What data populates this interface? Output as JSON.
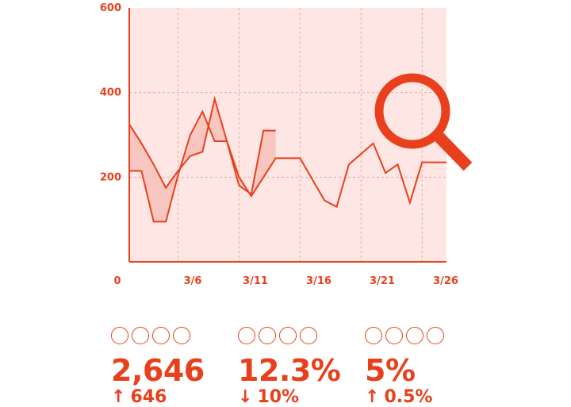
{
  "colors": {
    "accent": "#e8401c",
    "plot_bg": "#fde6e4",
    "band": "#f7c6c0",
    "grid": "#f0a898"
  },
  "chart_data": {
    "type": "line",
    "y_ticks": [
      "600",
      "400",
      "200"
    ],
    "x_ticks": [
      "0",
      "3/6",
      "3/11",
      "3/16",
      "3/21",
      "3/26"
    ],
    "ylim": [
      0,
      600
    ],
    "grid": true,
    "icon": "magnifier-icon",
    "series": [
      {
        "x": [
          1,
          2,
          3,
          4,
          5,
          6,
          7,
          8,
          9,
          10,
          11,
          12,
          13,
          14,
          15,
          16,
          17,
          18,
          19,
          20,
          21,
          22,
          23,
          24,
          25,
          26,
          27
        ],
        "y": [
          325,
          280,
          230,
          175,
          215,
          250,
          260,
          385,
          285,
          200,
          155,
          200,
          245,
          245,
          245,
          195,
          145,
          130,
          230,
          255,
          280,
          210,
          230,
          140,
          235,
          235,
          235
        ]
      },
      {
        "x": [
          1,
          2,
          3,
          4,
          5,
          6,
          7,
          8,
          9,
          10,
          11,
          12,
          13
        ],
        "y": [
          215,
          215,
          95,
          95,
          205,
          300,
          355,
          285,
          285,
          180,
          160,
          310,
          310
        ]
      }
    ]
  },
  "stats": [
    {
      "value": "2,646",
      "arrow": "↑",
      "delta": "646"
    },
    {
      "value": "12.3%",
      "arrow": "↓",
      "delta": "10%"
    },
    {
      "value": "5%",
      "arrow": "↑",
      "delta": "0.5%"
    }
  ]
}
